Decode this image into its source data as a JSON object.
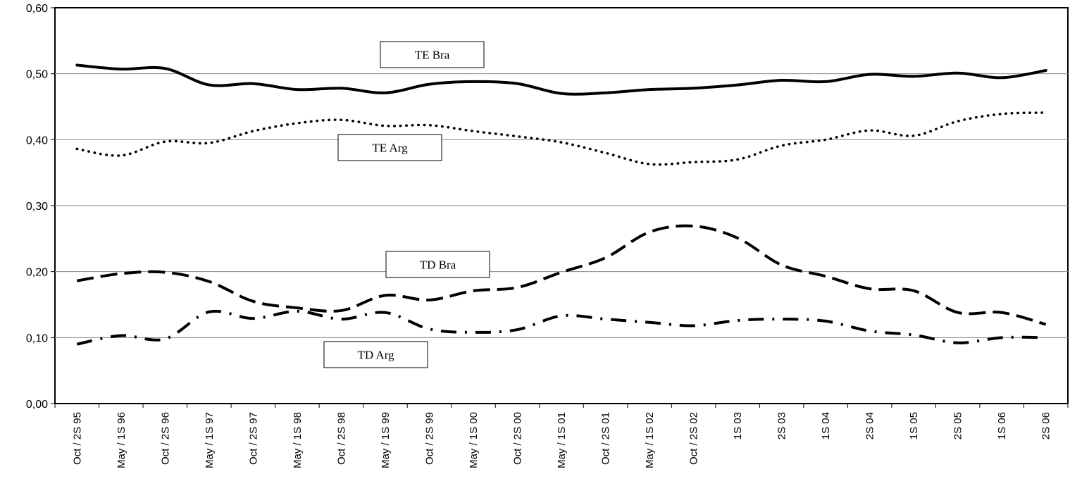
{
  "chart_data": {
    "type": "line",
    "title": "",
    "xlabel": "",
    "ylabel": "",
    "ylim": [
      0,
      0.6
    ],
    "yticks": [
      "0,00",
      "0,10",
      "0,20",
      "0,30",
      "0,40",
      "0,50",
      "0,60"
    ],
    "grid": "horizontal",
    "categories": [
      "Oct / 2S 95",
      "May / 1S 96",
      "Oct / 2S 96",
      "May / 1S 97",
      "Oct / 2S 97",
      "May / 1S 98",
      "Oct / 2S 98",
      "May / 1S 99",
      "Oct / 2S 99",
      "May / 1S 00",
      "Oct / 2S 00",
      "May / 1S 01",
      "Oct / 2S 01",
      "May / 1S 02",
      "Oct / 2S 02",
      "1S 03",
      "2S 03",
      "1S 04",
      "2S 04",
      "1S 05",
      "2S 05",
      "1S 06",
      "2S 06"
    ],
    "series": [
      {
        "name": "TE Bra",
        "style": "solid",
        "values": [
          0.513,
          0.507,
          0.508,
          0.483,
          0.485,
          0.476,
          0.478,
          0.471,
          0.484,
          0.488,
          0.485,
          0.47,
          0.471,
          0.476,
          0.478,
          0.483,
          0.49,
          0.488,
          0.499,
          0.496,
          0.501,
          0.494,
          0.505
        ]
      },
      {
        "name": "TE Arg",
        "style": "dotted",
        "values": [
          0.386,
          0.376,
          0.397,
          0.395,
          0.413,
          0.425,
          0.43,
          0.421,
          0.422,
          0.413,
          0.405,
          0.396,
          0.38,
          0.363,
          0.366,
          0.37,
          0.391,
          0.4,
          0.414,
          0.406,
          0.428,
          0.439,
          0.441
        ]
      },
      {
        "name": "TD Bra",
        "style": "dashed",
        "values": [
          0.186,
          0.197,
          0.199,
          0.185,
          0.155,
          0.145,
          0.141,
          0.164,
          0.157,
          0.171,
          0.176,
          0.199,
          0.221,
          0.26,
          0.269,
          0.251,
          0.21,
          0.193,
          0.174,
          0.171,
          0.138,
          0.138,
          0.12
        ]
      },
      {
        "name": "TD Arg",
        "style": "dashdot",
        "values": [
          0.09,
          0.103,
          0.098,
          0.139,
          0.129,
          0.14,
          0.128,
          0.138,
          0.113,
          0.108,
          0.112,
          0.133,
          0.128,
          0.123,
          0.118,
          0.126,
          0.128,
          0.125,
          0.11,
          0.104,
          0.092,
          0.1,
          0.1
        ]
      }
    ],
    "legend_labels": [
      {
        "text": "TE Bra",
        "series": "TE Bra"
      },
      {
        "text": "TE Arg",
        "series": "TE Arg"
      },
      {
        "text": "TD Bra",
        "series": "TD Bra"
      },
      {
        "text": "TD Arg",
        "series": "TD Arg"
      }
    ]
  }
}
